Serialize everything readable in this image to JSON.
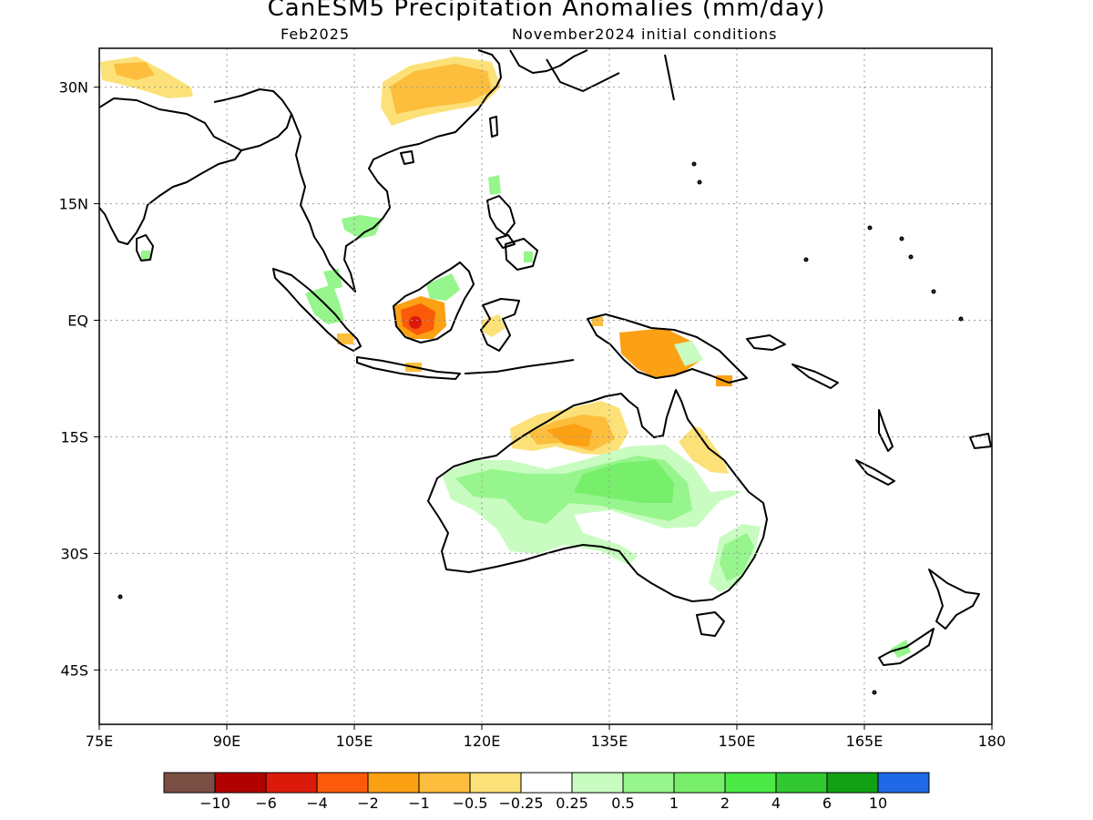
{
  "title": "CanESM5 Precipitation Anomalies (mm/day)",
  "subtitle_left": "Feb2025",
  "subtitle_right": "November2024 initial conditions",
  "map": {
    "lon_range": [
      75,
      180
    ],
    "lat_range": [
      -52,
      35
    ],
    "lon_ticks": [
      {
        "value": 75,
        "label": "75E"
      },
      {
        "value": 90,
        "label": "90E"
      },
      {
        "value": 105,
        "label": "105E"
      },
      {
        "value": 120,
        "label": "120E"
      },
      {
        "value": 135,
        "label": "135E"
      },
      {
        "value": 150,
        "label": "150E"
      },
      {
        "value": 165,
        "label": "165E"
      },
      {
        "value": 180,
        "label": "180"
      }
    ],
    "lat_ticks": [
      {
        "value": 30,
        "label": "30N"
      },
      {
        "value": 15,
        "label": "15N"
      },
      {
        "value": 0,
        "label": "EQ"
      },
      {
        "value": -15,
        "label": "15S"
      },
      {
        "value": -30,
        "label": "30S"
      },
      {
        "value": -45,
        "label": "45S"
      }
    ],
    "gridlines": "dotted"
  },
  "colorbar": {
    "colors": [
      "#7a5044",
      "#b00000",
      "#dc1a0a",
      "#fa5a0a",
      "#fca014",
      "#fcbe3c",
      "#fce178",
      "#ffffff",
      "#c8fcc0",
      "#96f58c",
      "#78ef6a",
      "#4bea46",
      "#32c832",
      "#12a014",
      "#1f69e6"
    ],
    "labels": [
      "−10",
      "−6",
      "−4",
      "−2",
      "−1",
      "−0.5",
      "−0.25",
      "0.25",
      "0.5",
      "1",
      "2",
      "4",
      "6",
      "10"
    ]
  }
}
